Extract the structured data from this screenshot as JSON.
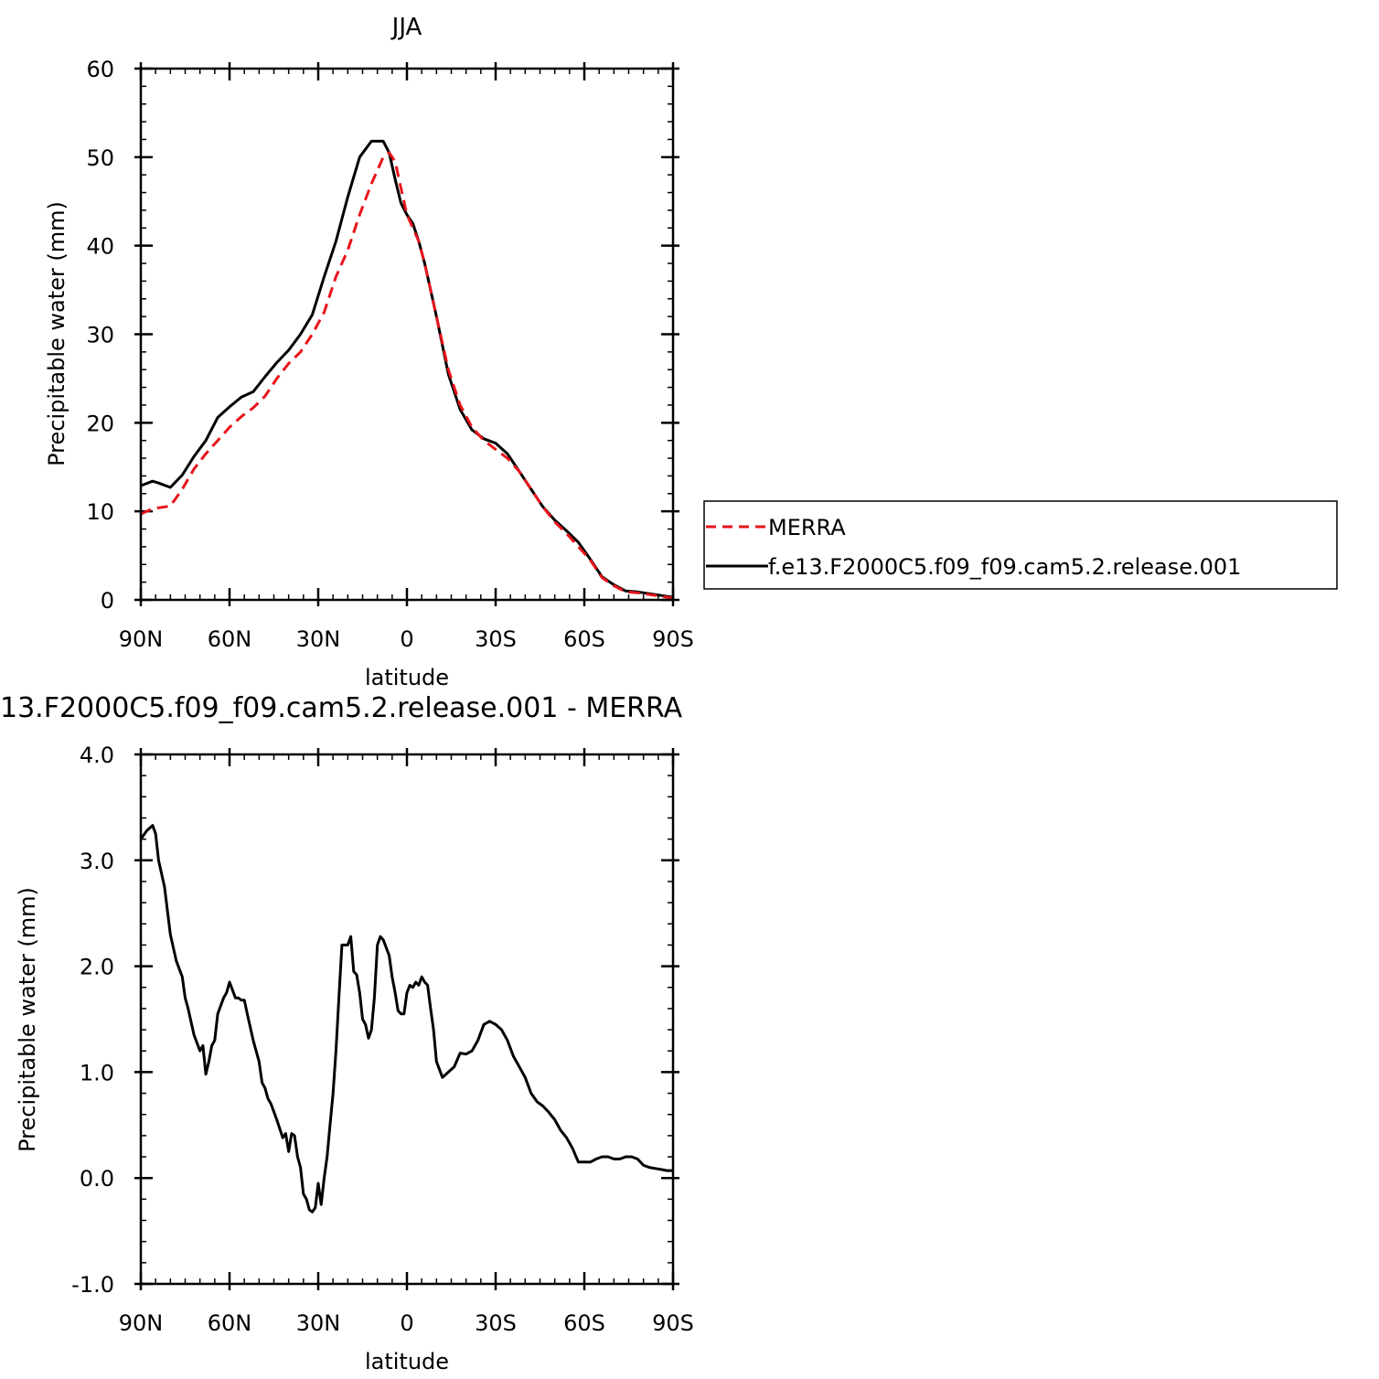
{
  "chart_data": [
    {
      "type": "line",
      "title": "JJA",
      "xlabel": "latitude",
      "ylabel": "Precipitable water (mm)",
      "xlim": [
        90,
        -90
      ],
      "ylim": [
        0,
        60
      ],
      "x_ticks": [
        90,
        60,
        30,
        0,
        -30,
        -60,
        -90
      ],
      "x_tick_labels": [
        "90N",
        "60N",
        "30N",
        "0",
        "30S",
        "60S",
        "90S"
      ],
      "y_ticks": [
        0,
        10,
        20,
        30,
        40,
        50,
        60
      ],
      "y_tick_labels": [
        "0",
        "10",
        "20",
        "30",
        "40",
        "50",
        "60"
      ],
      "legend_position": "right",
      "series": [
        {
          "name": "MERRA",
          "color": "#e8141b",
          "dash": "dashed",
          "x": [
            90,
            86,
            84,
            80,
            76,
            72,
            68,
            64,
            60,
            56,
            52,
            48,
            44,
            40,
            36,
            32,
            28,
            24,
            20,
            16,
            12,
            8,
            6,
            4,
            2,
            0,
            -2,
            -4,
            -6,
            -10,
            -14,
            -18,
            -22,
            -26,
            -30,
            -34,
            -38,
            -42,
            -46,
            -50,
            -54,
            -58,
            -62,
            -66,
            -70,
            -74,
            -78,
            -82,
            -86,
            -90
          ],
          "y": [
            9.7,
            10.3,
            10.4,
            10.6,
            12.5,
            14.8,
            16.5,
            18.0,
            19.5,
            20.7,
            21.7,
            23.0,
            25.0,
            26.7,
            28.0,
            30.0,
            32.5,
            36.5,
            39.5,
            43.5,
            47.0,
            50.0,
            50.5,
            49.5,
            46.5,
            43.5,
            42.0,
            40.5,
            38.0,
            32.0,
            26.0,
            22.0,
            19.5,
            18.0,
            17.0,
            16.0,
            14.5,
            12.5,
            10.5,
            8.8,
            7.5,
            6.0,
            4.5,
            2.5,
            1.6,
            0.9,
            0.8,
            0.6,
            0.4,
            0.2
          ]
        },
        {
          "name": "f.e13.F2000C5.f09_f09.cam5.2.release.001",
          "color": "#000000",
          "dash": "solid",
          "x": [
            90,
            86,
            84,
            80,
            76,
            72,
            68,
            64,
            60,
            56,
            52,
            48,
            44,
            40,
            36,
            32,
            28,
            24,
            20,
            16,
            12,
            8,
            6,
            4,
            2,
            0,
            -2,
            -4,
            -6,
            -10,
            -14,
            -18,
            -22,
            -26,
            -30,
            -34,
            -38,
            -42,
            -46,
            -50,
            -54,
            -58,
            -62,
            -66,
            -70,
            -74,
            -78,
            -82,
            -86,
            -90
          ],
          "y": [
            12.9,
            13.4,
            13.2,
            12.7,
            14.1,
            16.2,
            18.0,
            20.6,
            21.8,
            22.9,
            23.5,
            25.2,
            26.8,
            28.2,
            30.0,
            32.2,
            36.5,
            40.5,
            45.5,
            50.0,
            51.8,
            51.8,
            50.5,
            47.5,
            44.8,
            43.5,
            42.5,
            40.5,
            38.0,
            32.0,
            25.5,
            21.5,
            19.2,
            18.2,
            17.7,
            16.5,
            14.5,
            12.5,
            10.5,
            9.0,
            7.8,
            6.5,
            4.6,
            2.6,
            1.7,
            1.0,
            0.9,
            0.7,
            0.5,
            0.3
          ]
        }
      ]
    },
    {
      "type": "line",
      "title": "13.F2000C5.f09_f09.cam5.2.release.001 - MERRA",
      "xlabel": "latitude",
      "ylabel": "Precipitable water (mm)",
      "xlim": [
        90,
        -90
      ],
      "ylim": [
        -1.0,
        4.0
      ],
      "x_ticks": [
        90,
        60,
        30,
        0,
        -30,
        -60,
        -90
      ],
      "x_tick_labels": [
        "90N",
        "60N",
        "30N",
        "0",
        "30S",
        "60S",
        "90S"
      ],
      "y_ticks": [
        -1.0,
        0.0,
        1.0,
        2.0,
        3.0,
        4.0
      ],
      "y_tick_labels": [
        "-1.0",
        "0.0",
        "1.0",
        "2.0",
        "3.0",
        "4.0"
      ],
      "series": [
        {
          "color": "#000000",
          "x": [
            90,
            88,
            86,
            85,
            84,
            82,
            80,
            78,
            76,
            75,
            74,
            72,
            70,
            69,
            68,
            67,
            66,
            65,
            64,
            62,
            61,
            60,
            58,
            57,
            56,
            55,
            54,
            52,
            50,
            49,
            48,
            47,
            46,
            44,
            42,
            41,
            40,
            39,
            38,
            37,
            36,
            35,
            34,
            33,
            32,
            31,
            30,
            29,
            28,
            27,
            26,
            25,
            24,
            23,
            22,
            20,
            19,
            18,
            17,
            16,
            15,
            14,
            13,
            12,
            11,
            10,
            9,
            8,
            6,
            5,
            4,
            3,
            2,
            1,
            0,
            -1,
            -2,
            -3,
            -4,
            -5,
            -6,
            -7,
            -8,
            -9,
            -10,
            -12,
            -14,
            -16,
            -18,
            -20,
            -22,
            -24,
            -26,
            -28,
            -30,
            -32,
            -34,
            -36,
            -38,
            -40,
            -42,
            -44,
            -46,
            -48,
            -50,
            -52,
            -54,
            -56,
            -58,
            -60,
            -62,
            -64,
            -66,
            -68,
            -70,
            -72,
            -74,
            -76,
            -78,
            -80,
            -82,
            -84,
            -86,
            -88,
            -90
          ],
          "y": [
            3.2,
            3.28,
            3.33,
            3.25,
            3.0,
            2.75,
            2.3,
            2.05,
            1.9,
            1.7,
            1.6,
            1.35,
            1.2,
            1.25,
            0.98,
            1.1,
            1.25,
            1.3,
            1.55,
            1.7,
            1.75,
            1.85,
            1.7,
            1.7,
            1.68,
            1.68,
            1.55,
            1.3,
            1.1,
            0.9,
            0.85,
            0.75,
            0.7,
            0.55,
            0.38,
            0.42,
            0.25,
            0.42,
            0.4,
            0.2,
            0.1,
            -0.15,
            -0.2,
            -0.3,
            -0.32,
            -0.28,
            -0.05,
            -0.25,
            0.0,
            0.2,
            0.5,
            0.8,
            1.2,
            1.7,
            2.2,
            2.2,
            2.28,
            1.95,
            1.92,
            1.75,
            1.5,
            1.45,
            1.32,
            1.4,
            1.7,
            2.2,
            2.28,
            2.25,
            2.1,
            1.9,
            1.75,
            1.58,
            1.55,
            1.55,
            1.75,
            1.82,
            1.8,
            1.85,
            1.82,
            1.9,
            1.85,
            1.82,
            1.6,
            1.4,
            1.1,
            0.95,
            1.0,
            1.05,
            1.18,
            1.17,
            1.2,
            1.3,
            1.45,
            1.48,
            1.45,
            1.4,
            1.3,
            1.15,
            1.05,
            0.95,
            0.8,
            0.72,
            0.68,
            0.62,
            0.55,
            0.45,
            0.38,
            0.28,
            0.15,
            0.15,
            0.15,
            0.18,
            0.2,
            0.2,
            0.18,
            0.18,
            0.2,
            0.2,
            0.18,
            0.12,
            0.1,
            0.09,
            0.08,
            0.07,
            0.07
          ]
        }
      ]
    }
  ]
}
